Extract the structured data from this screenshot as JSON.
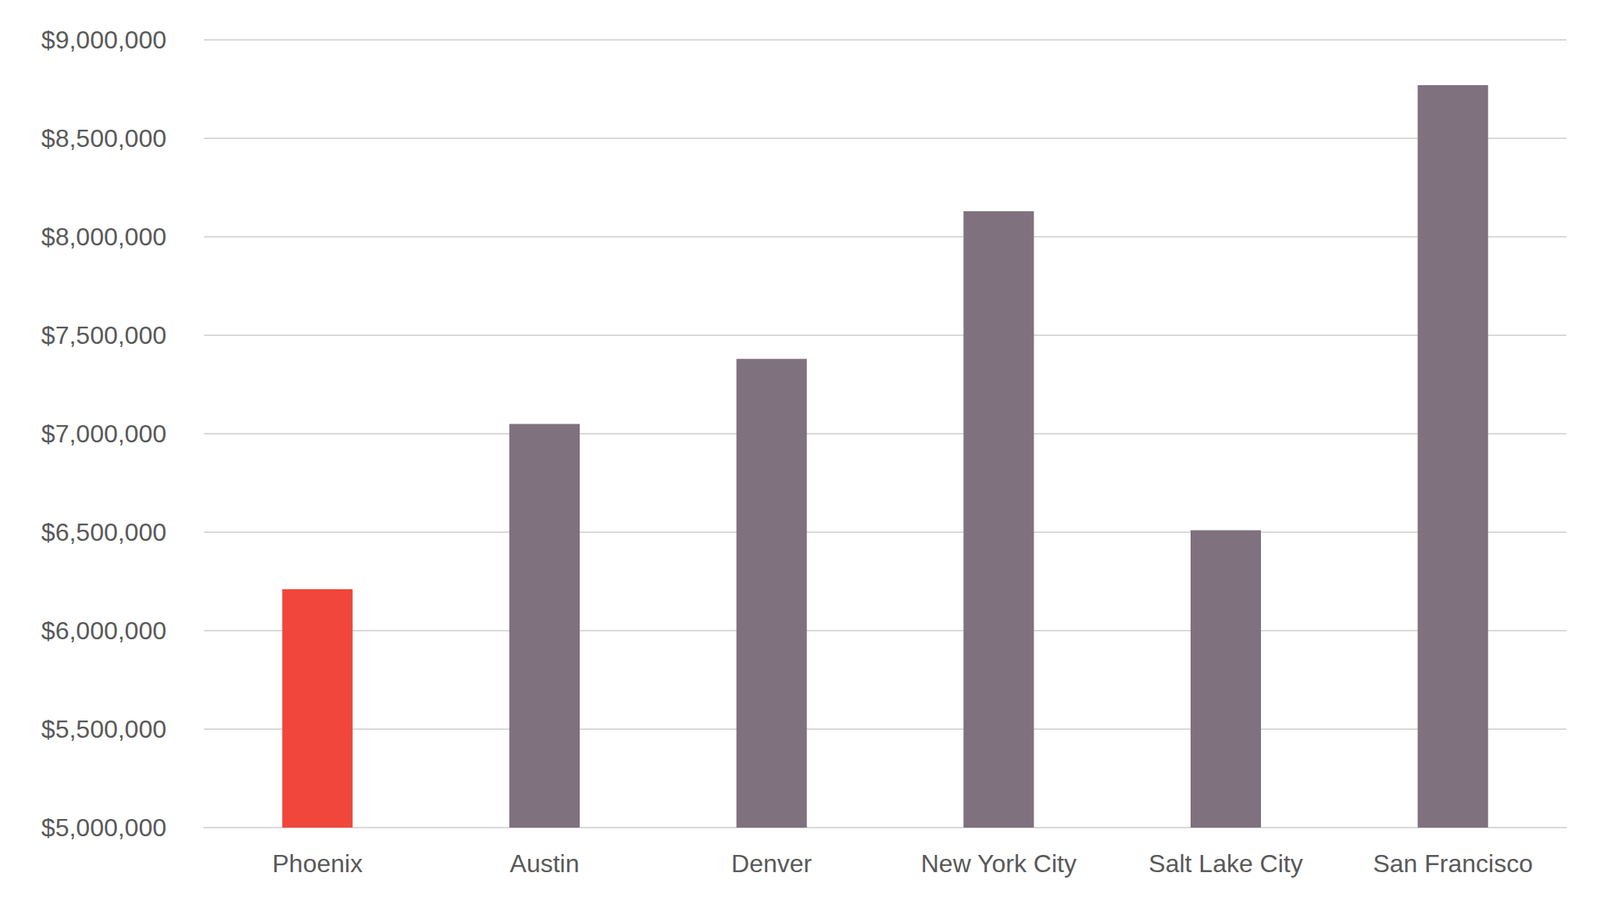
{
  "chart_data": {
    "type": "bar",
    "categories": [
      "Phoenix",
      "Austin",
      "Denver",
      "New York City",
      "Salt Lake City",
      "San Francisco"
    ],
    "values": [
      6210000,
      7050000,
      7380000,
      8130000,
      6510000,
      8770000
    ],
    "colors": [
      "#f0463c",
      "#7f717e",
      "#7f717e",
      "#7f717e",
      "#7f717e",
      "#7f717e"
    ],
    "ylim": [
      5000000,
      9000000
    ],
    "yticks": [
      {
        "value": 5000000,
        "label": "$5,000,000"
      },
      {
        "value": 5500000,
        "label": "$5,500,000"
      },
      {
        "value": 6000000,
        "label": "$6,000,000"
      },
      {
        "value": 6500000,
        "label": "$6,500,000"
      },
      {
        "value": 7000000,
        "label": "$7,000,000"
      },
      {
        "value": 7500000,
        "label": "$7,500,000"
      },
      {
        "value": 8000000,
        "label": "$8,000,000"
      },
      {
        "value": 8500000,
        "label": "$8,500,000"
      },
      {
        "value": 9000000,
        "label": "$9,000,000"
      }
    ],
    "grid": true
  }
}
